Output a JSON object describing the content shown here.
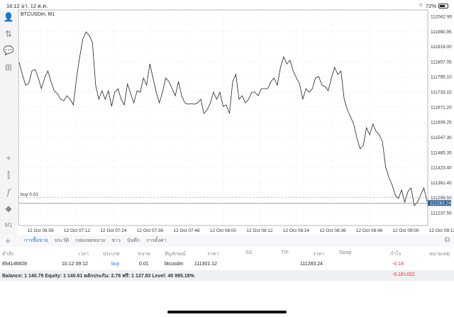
{
  "status_bar": {
    "time": "16:12",
    "date": "อา. 12 ต.ค.",
    "battery": "72%",
    "battery_level": 0.72
  },
  "toolbar": {
    "icons": [
      "account-icon",
      "trade-icon",
      "chat-icon",
      "new-document-icon",
      "crosshair-icon",
      "indicators-icon",
      "function-icon",
      "objects-icon"
    ],
    "timeframe": "M1"
  },
  "chart_data": {
    "type": "line",
    "title": "BTCUSDm, M1",
    "y_ticks": [
      "112042.90",
      "111980.95",
      "111919.00",
      "111857.05",
      "111795.10",
      "111733.15",
      "111671.20",
      "111609.25",
      "111547.30",
      "111485.35",
      "111423.40",
      "111361.45",
      "111299.50",
      "111237.55"
    ],
    "ylim": [
      111200,
      112050
    ],
    "x_ticks": [
      "12 Oct 06:59",
      "12 Oct 07:12",
      "12 Oct 07:24",
      "12 Oct 07:36",
      "12 Oct 07:48",
      "12 Oct 08:00",
      "12 Oct 08:12",
      "12 Oct 08:24",
      "12 Oct 08:36",
      "12 Oct 08:48",
      "12 Oct 09:00",
      "12 Oct 09:12"
    ],
    "grid": true,
    "current_price": "111283.24",
    "order_line": {
      "label": "buy 0.01",
      "price": 111301.12
    },
    "colors": {
      "line": "#222222",
      "current_price_bg": "#2e5f95",
      "grid": "#d8d8d8"
    },
    "values": [
      111853.9,
      111804.5,
      111760.8,
      111766.7,
      111819.0,
      111824.8,
      111789.9,
      111746.3,
      111789.9,
      111819.0,
      111775.4,
      111737.6,
      111725.9,
      111702.7,
      111696.9,
      111717.2,
      111702.7,
      111679.4,
      111789.9,
      111877.2,
      111949.9,
      111978.9,
      111964.4,
      111935.3,
      111760.8,
      111702.7,
      111737.6,
      111702.7,
      111737.6,
      111673.6,
      111731.8,
      111746.3,
      111702.7,
      111679.4,
      111766.7,
      111725.9,
      111688.1,
      111737.6,
      111731.8,
      111789.9,
      111760.8,
      111848.1,
      111789.9,
      111731.8,
      111688.1,
      111731.8,
      111789.9,
      111775.4,
      111746.3,
      111717.2,
      111775.4,
      111717.2,
      111688.1,
      111682.3,
      111685.2,
      111682.3,
      111688.1,
      111702.7,
      111644.5,
      111659.1,
      111688.1,
      111731.8,
      111702.7,
      111731.8,
      111673.6,
      111679.4,
      111644.5,
      111775.4,
      111804.5,
      111702.7,
      111717.2,
      111688.1,
      111702.7,
      111731.8,
      111731.8,
      111717.2,
      111746.3,
      111746.3,
      111746.3,
      111775.4,
      111789.9,
      111760.8,
      111833.5,
      111877.2,
      111848.1,
      111862.6,
      111819.0,
      111789.9,
      111766.7,
      111702.7,
      111746.3,
      111731.8,
      111746.3,
      111789.9,
      111795.7,
      111760.8,
      111755.0,
      111737.6,
      111789.9,
      111833.5,
      111804.5,
      111819.0,
      111702.7,
      111659.1,
      111629.9,
      111600.9,
      111542.7,
      111499.1,
      111513.7,
      111586.4,
      111557.3,
      111600.9,
      111571.8,
      111557.3,
      111528.2,
      111426.4,
      111382.8,
      111353.7,
      111310.1,
      111295.6,
      111330.5,
      111281.0,
      111324.6,
      111339.2,
      111266.5,
      111281.0,
      111310.1,
      111339.2,
      111283.24
    ]
  },
  "tabs": {
    "items": [
      "การซื้อขาย",
      "ประวัติ",
      "กล่องจดหมาย",
      "ข่าว",
      "บันทึก",
      "การตั้งค่า"
    ],
    "active": 0
  },
  "table": {
    "headers": [
      "คำสั่ง",
      "เวลา",
      "ประเภท",
      "ขนาด",
      "สัญลักษณ์",
      "ราคา",
      "S/L",
      "T/P",
      "ราคา",
      "Swap",
      "กำไร",
      "หมายเหตุ"
    ],
    "rows": [
      {
        "order": "854146828",
        "time": "10.12 09:12",
        "type": "buy",
        "size": "0.01",
        "symbol": "btcusdm",
        "open_price": "111301.12",
        "sl": "",
        "tp": "",
        "price": "111283.24",
        "swap": "",
        "profit": "-0.18",
        "comment": ""
      }
    ]
  },
  "summary": {
    "text": "Balance: 1 140.79 Equity: 1 140.61 หลักประกัน: 2.78 ฟรี: 1 137.83 Level: 40 995.18%",
    "profit": "-0.18",
    "currency": "USD"
  }
}
